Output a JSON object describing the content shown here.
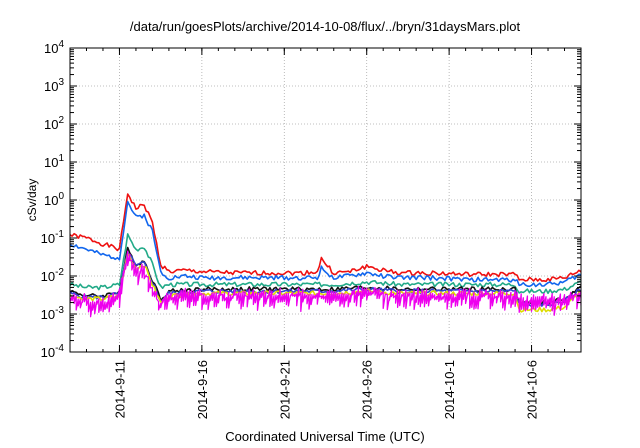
{
  "chart_data": {
    "type": "line",
    "title": "/data/run/goesPlots/archive/2014-10-08/flux/../bryn/31daysMars.plot",
    "xlabel": "Coordinated Universal Time (UTC)",
    "ylabel": "cSv/day",
    "y_scale": "log",
    "ylim_exponents": [
      -4,
      4
    ],
    "y_tick_base": "10",
    "y_tick_exponents": [
      "-4",
      "-3",
      "-2",
      "-1",
      "0",
      "1",
      "2",
      "3",
      "4"
    ],
    "x_range": [
      "2014-09-08",
      "2014-10-09"
    ],
    "x_ticks": [
      {
        "date": "2014-09-11",
        "label": "2014-9-11"
      },
      {
        "date": "2014-09-16",
        "label": "2014-9-16"
      },
      {
        "date": "2014-09-21",
        "label": "2014-9-21"
      },
      {
        "date": "2014-09-26",
        "label": "2014-9-26"
      },
      {
        "date": "2014-10-01",
        "label": "2014-10-1"
      },
      {
        "date": "2014-10-06",
        "label": "2014-10-6"
      }
    ],
    "grid": true,
    "grid_style": "dotted",
    "legend": "none",
    "series": [
      {
        "color": "#ee1111",
        "band": 0.0,
        "x": [
          "2014-09-08",
          "2014-09-09",
          "2014-09-10",
          "2014-09-11",
          "2014-09-11T12",
          "2014-09-12",
          "2014-09-12T12",
          "2014-09-13",
          "2014-09-13T12",
          "2014-09-14",
          "2014-09-15",
          "2014-09-16",
          "2014-09-18",
          "2014-09-20",
          "2014-09-22",
          "2014-09-23",
          "2014-09-23T06",
          "2014-09-24",
          "2014-09-25",
          "2014-09-26",
          "2014-09-27",
          "2014-09-28",
          "2014-09-30",
          "2014-10-02",
          "2014-10-04",
          "2014-10-05",
          "2014-10-05T06",
          "2014-10-07",
          "2014-10-08",
          "2014-10-09"
        ],
        "y": [
          0.12,
          0.1,
          0.07,
          0.05,
          1.5,
          0.6,
          0.75,
          0.25,
          0.02,
          0.013,
          0.014,
          0.013,
          0.012,
          0.012,
          0.012,
          0.013,
          0.028,
          0.012,
          0.013,
          0.018,
          0.014,
          0.012,
          0.012,
          0.011,
          0.011,
          0.011,
          0.008,
          0.008,
          0.009,
          0.014
        ]
      },
      {
        "color": "#1166ee",
        "band": 0.0,
        "x": [
          "2014-09-08",
          "2014-09-09",
          "2014-09-10",
          "2014-09-11",
          "2014-09-11T12",
          "2014-09-12",
          "2014-09-12T12",
          "2014-09-13",
          "2014-09-13T12",
          "2014-09-14",
          "2014-09-15",
          "2014-09-16",
          "2014-09-18",
          "2014-09-20",
          "2014-09-22",
          "2014-09-23",
          "2014-09-23T06",
          "2014-09-24",
          "2014-09-25",
          "2014-09-26",
          "2014-09-27",
          "2014-09-28",
          "2014-09-30",
          "2014-10-02",
          "2014-10-04",
          "2014-10-05",
          "2014-10-05T06",
          "2014-10-07",
          "2014-10-08",
          "2014-10-09"
        ],
        "y": [
          0.07,
          0.05,
          0.035,
          0.03,
          0.9,
          0.35,
          0.4,
          0.15,
          0.013,
          0.009,
          0.01,
          0.009,
          0.009,
          0.009,
          0.009,
          0.009,
          0.016,
          0.009,
          0.01,
          0.012,
          0.01,
          0.009,
          0.009,
          0.008,
          0.008,
          0.008,
          0.006,
          0.006,
          0.007,
          0.011
        ]
      },
      {
        "color": "#22aa88",
        "band": 0.0,
        "x": [
          "2014-09-08",
          "2014-09-09",
          "2014-09-10",
          "2014-09-11",
          "2014-09-11T12",
          "2014-09-12",
          "2014-09-12T12",
          "2014-09-13",
          "2014-09-13T12",
          "2014-09-14",
          "2014-09-16",
          "2014-09-18",
          "2014-09-20",
          "2014-09-22",
          "2014-09-24",
          "2014-09-26",
          "2014-09-28",
          "2014-09-30",
          "2014-10-02",
          "2014-10-04",
          "2014-10-05",
          "2014-10-05T06",
          "2014-10-07",
          "2014-10-08",
          "2014-10-09"
        ],
        "y": [
          0.006,
          0.005,
          0.005,
          0.006,
          0.12,
          0.05,
          0.06,
          0.02,
          0.005,
          0.006,
          0.006,
          0.006,
          0.006,
          0.006,
          0.006,
          0.007,
          0.006,
          0.006,
          0.006,
          0.006,
          0.006,
          0.004,
          0.004,
          0.0045,
          0.007
        ]
      },
      {
        "color": "#111111",
        "band": 0.0,
        "x": [
          "2014-09-08",
          "2014-09-09",
          "2014-09-10",
          "2014-09-11",
          "2014-09-11T12",
          "2014-09-12",
          "2014-09-12T12",
          "2014-09-13",
          "2014-09-13T12",
          "2014-09-14",
          "2014-09-16",
          "2014-09-18",
          "2014-09-20",
          "2014-09-22",
          "2014-09-24",
          "2014-09-26",
          "2014-09-28",
          "2014-09-30",
          "2014-10-02",
          "2014-10-04",
          "2014-10-05",
          "2014-10-05T06",
          "2014-10-07",
          "2014-10-08",
          "2014-10-09"
        ],
        "y": [
          0.004,
          0.003,
          0.003,
          0.004,
          0.05,
          0.02,
          0.025,
          0.008,
          0.0025,
          0.004,
          0.0045,
          0.0045,
          0.0045,
          0.0045,
          0.0045,
          0.005,
          0.0045,
          0.0045,
          0.0045,
          0.0045,
          0.0045,
          0.002,
          0.002,
          0.0025,
          0.005
        ]
      },
      {
        "color": "#3344cc",
        "band": 0.0,
        "x": [
          "2014-09-08",
          "2014-09-09",
          "2014-09-10",
          "2014-09-11",
          "2014-09-11T12",
          "2014-09-12",
          "2014-09-12T12",
          "2014-09-13",
          "2014-09-13T12",
          "2014-09-14",
          "2014-09-16",
          "2014-09-18",
          "2014-09-20",
          "2014-09-22",
          "2014-09-24",
          "2014-09-26",
          "2014-09-28",
          "2014-09-30",
          "2014-10-02",
          "2014-10-04",
          "2014-10-05",
          "2014-10-05T06",
          "2014-10-07",
          "2014-10-08",
          "2014-10-09"
        ],
        "y": [
          0.0035,
          0.0028,
          0.0028,
          0.0035,
          0.045,
          0.018,
          0.022,
          0.007,
          0.0022,
          0.0035,
          0.004,
          0.004,
          0.004,
          0.004,
          0.004,
          0.0045,
          0.004,
          0.004,
          0.004,
          0.004,
          0.004,
          0.0018,
          0.0018,
          0.0022,
          0.0045
        ]
      },
      {
        "color": "#dddd00",
        "band": 0.0,
        "x": [
          "2014-09-08",
          "2014-09-09",
          "2014-09-10",
          "2014-09-11",
          "2014-09-11T12",
          "2014-09-12",
          "2014-09-12T12",
          "2014-09-13",
          "2014-09-13T12",
          "2014-09-14",
          "2014-09-16",
          "2014-09-18",
          "2014-09-20",
          "2014-09-22",
          "2014-09-24",
          "2014-09-26",
          "2014-09-28",
          "2014-09-30",
          "2014-10-02",
          "2014-10-04",
          "2014-10-05",
          "2014-10-05T06",
          "2014-10-07",
          "2014-10-08",
          "2014-10-09"
        ],
        "y": [
          0.003,
          0.0025,
          0.0025,
          0.003,
          0.04,
          0.016,
          0.02,
          0.006,
          0.002,
          0.003,
          0.0035,
          0.0035,
          0.0035,
          0.0035,
          0.0035,
          0.004,
          0.0035,
          0.0035,
          0.0035,
          0.0035,
          0.0035,
          0.0013,
          0.0013,
          0.0015,
          0.004
        ]
      },
      {
        "color": "#ee00ee",
        "band": 0.35,
        "x": [
          "2014-09-08",
          "2014-09-09",
          "2014-09-10",
          "2014-09-11",
          "2014-09-11T12",
          "2014-09-12",
          "2014-09-12T12",
          "2014-09-13",
          "2014-09-13T12",
          "2014-09-14",
          "2014-09-16",
          "2014-09-18",
          "2014-09-20",
          "2014-09-22",
          "2014-09-24",
          "2014-09-26",
          "2014-09-28",
          "2014-09-30",
          "2014-10-02",
          "2014-10-04",
          "2014-10-05",
          "2014-10-05T06",
          "2014-10-07",
          "2014-10-08",
          "2014-10-09"
        ],
        "y": [
          0.0025,
          0.002,
          0.002,
          0.003,
          0.035,
          0.013,
          0.015,
          0.005,
          0.0018,
          0.0028,
          0.003,
          0.003,
          0.003,
          0.003,
          0.003,
          0.0035,
          0.003,
          0.003,
          0.003,
          0.003,
          0.003,
          0.0022,
          0.0022,
          0.0025,
          0.0035
        ]
      }
    ]
  }
}
